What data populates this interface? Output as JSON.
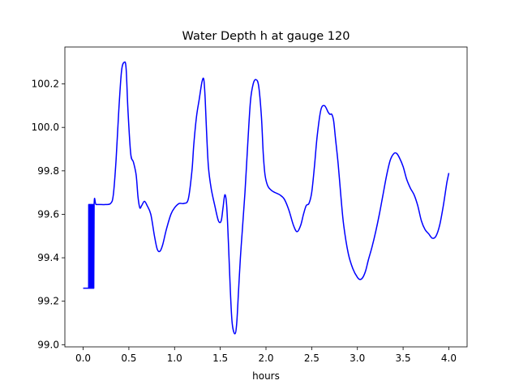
{
  "chart_data": {
    "type": "line",
    "title": "Water Depth h at gauge 120",
    "xlabel": "hours",
    "ylabel": "",
    "xlim": [
      -0.2,
      4.2
    ],
    "ylim": [
      98.99,
      100.37
    ],
    "xticks": [
      "0.0",
      "0.5",
      "1.0",
      "1.5",
      "2.0",
      "2.5",
      "3.0",
      "3.5",
      "4.0"
    ],
    "yticks": [
      "99.0",
      "99.2",
      "99.4",
      "99.6",
      "99.8",
      "100.0",
      "100.2"
    ],
    "grid": false,
    "legend": "none",
    "series": [
      {
        "color": "#0000ff",
        "x": [
          0.0,
          0.06,
          0.061,
          0.065,
          0.066,
          0.07,
          0.071,
          0.075,
          0.076,
          0.08,
          0.081,
          0.085,
          0.086,
          0.09,
          0.091,
          0.095,
          0.096,
          0.1,
          0.101,
          0.105,
          0.106,
          0.11,
          0.111,
          0.115,
          0.116,
          0.12,
          0.14,
          0.18,
          0.24,
          0.3,
          0.33,
          0.36,
          0.39,
          0.42,
          0.45,
          0.47,
          0.49,
          0.52,
          0.55,
          0.58,
          0.6,
          0.62,
          0.64,
          0.67,
          0.7,
          0.74,
          0.78,
          0.81,
          0.84,
          0.87,
          0.91,
          0.96,
          1.0,
          1.05,
          1.1,
          1.15,
          1.19,
          1.21,
          1.24,
          1.27,
          1.3,
          1.32,
          1.335,
          1.35,
          1.37,
          1.4,
          1.44,
          1.48,
          1.51,
          1.53,
          1.55,
          1.57,
          1.59,
          1.61,
          1.63,
          1.66,
          1.68,
          1.7,
          1.72,
          1.74,
          1.77,
          1.8,
          1.83,
          1.86,
          1.89,
          1.92,
          1.95,
          1.97,
          1.99,
          2.02,
          2.06,
          2.1,
          2.15,
          2.2,
          2.25,
          2.3,
          2.34,
          2.38,
          2.41,
          2.44,
          2.47,
          2.5,
          2.53,
          2.56,
          2.6,
          2.64,
          2.68,
          2.7,
          2.72,
          2.74,
          2.76,
          2.79,
          2.82,
          2.85,
          2.9,
          2.95,
          3.0,
          3.03,
          3.06,
          3.09,
          3.12,
          3.16,
          3.2,
          3.24,
          3.28,
          3.32,
          3.36,
          3.4,
          3.43,
          3.46,
          3.5,
          3.54,
          3.58,
          3.62,
          3.66,
          3.7,
          3.74,
          3.78,
          3.82,
          3.86,
          3.9,
          3.94,
          3.98,
          4.0
        ],
        "values": [
          99.26,
          99.26,
          99.645,
          99.645,
          99.26,
          99.26,
          99.645,
          99.645,
          99.26,
          99.26,
          99.645,
          99.645,
          99.26,
          99.26,
          99.645,
          99.645,
          99.26,
          99.26,
          99.645,
          99.645,
          99.26,
          99.26,
          99.645,
          99.645,
          99.26,
          99.645,
          99.645,
          99.645,
          99.645,
          99.65,
          99.69,
          99.85,
          100.08,
          100.26,
          100.3,
          100.27,
          100.08,
          99.88,
          99.84,
          99.78,
          99.68,
          99.63,
          99.64,
          99.66,
          99.64,
          99.6,
          99.5,
          99.44,
          99.43,
          99.46,
          99.53,
          99.6,
          99.63,
          99.65,
          99.65,
          99.67,
          99.8,
          99.92,
          100.05,
          100.13,
          100.21,
          100.22,
          100.13,
          99.98,
          99.82,
          99.72,
          99.64,
          99.57,
          99.57,
          99.63,
          99.69,
          99.64,
          99.46,
          99.25,
          99.1,
          99.05,
          99.1,
          99.25,
          99.4,
          99.52,
          99.7,
          99.92,
          100.12,
          100.2,
          100.22,
          100.19,
          100.05,
          99.88,
          99.78,
          99.73,
          99.71,
          99.7,
          99.69,
          99.67,
          99.62,
          99.55,
          99.52,
          99.55,
          99.6,
          99.64,
          99.65,
          99.7,
          99.82,
          99.96,
          100.08,
          100.1,
          100.07,
          100.06,
          100.06,
          100.03,
          99.95,
          99.83,
          99.68,
          99.55,
          99.42,
          99.35,
          99.31,
          99.3,
          99.31,
          99.34,
          99.39,
          99.45,
          99.52,
          99.6,
          99.69,
          99.78,
          99.85,
          99.88,
          99.88,
          99.86,
          99.82,
          99.76,
          99.72,
          99.69,
          99.64,
          99.57,
          99.53,
          99.51,
          99.49,
          99.5,
          99.55,
          99.64,
          99.75,
          99.79
        ]
      }
    ]
  }
}
